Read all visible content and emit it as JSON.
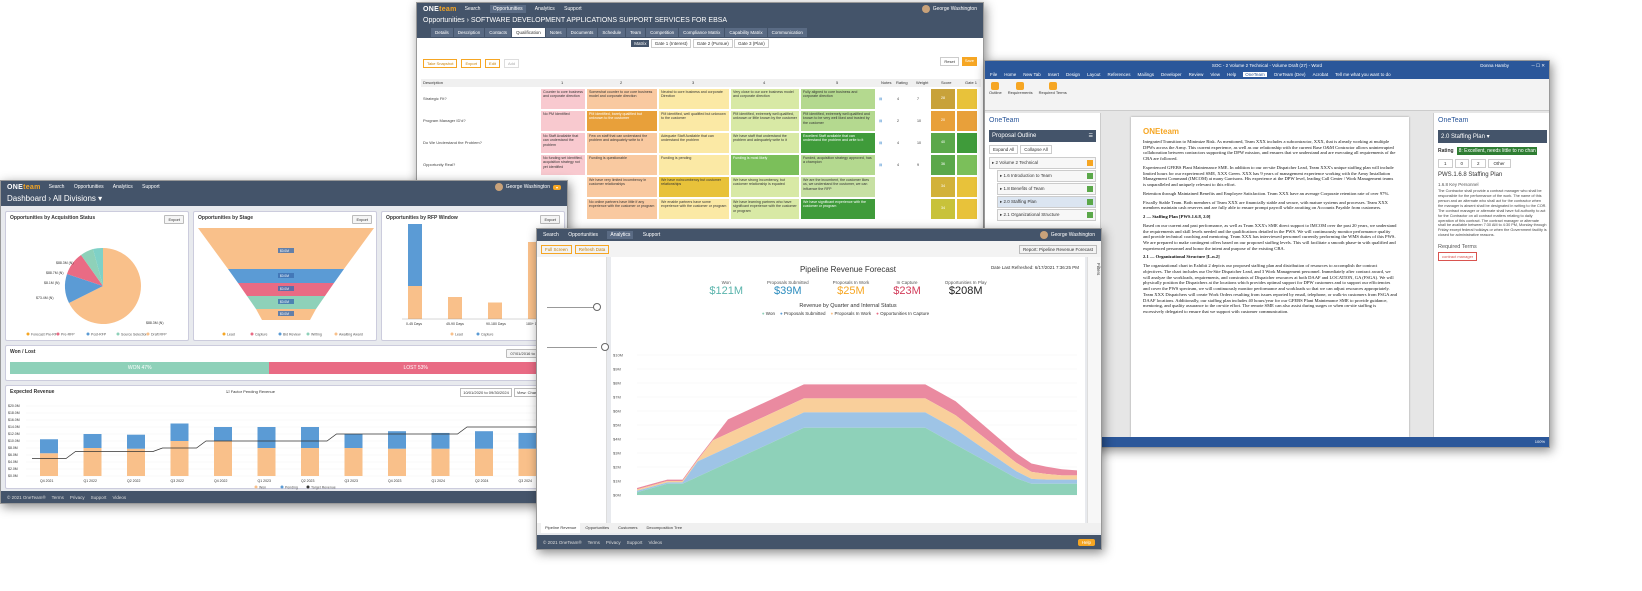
{
  "app": {
    "logo_main": "ONE",
    "logo_accent": "team",
    "user": "George Washington",
    "footer_copy": "© 2021 OneTeam®",
    "footer_links": [
      "Terms",
      "Privacy",
      "Support",
      "Videos"
    ],
    "help": "Help"
  },
  "nav": {
    "items": [
      "Search",
      "Opportunities",
      "Analytics",
      "Support"
    ]
  },
  "dashboard": {
    "title": "Dashboard",
    "divisions": "All Divisions",
    "acq": {
      "title": "Opportunities by Acquisition Status",
      "export": "Export",
      "labels": [
        "$88.3M (N)",
        "$88.7M (N)",
        "$8.1M (N)",
        "$73.4M (N)",
        "$88.3M (N)"
      ],
      "legend": [
        "Forecast Pre-RFP",
        "Pre-RFP",
        "Post-RFP",
        "Source Selection",
        "Draft RFP"
      ]
    },
    "stage": {
      "title": "Opportunities by Stage",
      "export": "Export",
      "labels": [
        "$0.0M",
        "$0.0M",
        "$0.0M",
        "$0.0M",
        "$0.0M"
      ],
      "legend": [
        "Lead",
        "Capture",
        "Bid Review",
        "Writing",
        "Awaiting Award"
      ]
    },
    "rfp": {
      "title": "Opportunities by RFP Window",
      "export": "Export",
      "categories": [
        "0-45 Days",
        "45-90 Days",
        "90-180 Days",
        "180+ Days"
      ],
      "legend": [
        "Lead",
        "Capture"
      ]
    },
    "wonlost": {
      "title": "Won / Lost",
      "range": "07/01/2016 to 07/30/2020",
      "won": "WON 47%",
      "lost": "LOST 53%"
    },
    "revenue": {
      "title": "Expected Revenue",
      "factor": "Factor Pending Revenue",
      "range": "10/01/2020 to 09/30/2024",
      "view": "View: Chart",
      "export": "Export",
      "yticks": [
        "$20.0M",
        "$18.0M",
        "$16.0M",
        "$14.0M",
        "$12.0M",
        "$10.0M",
        "$8.0M",
        "$6.0M",
        "$4.0M",
        "$2.0M",
        "$0.0M"
      ],
      "quarters": [
        "Q4 2021",
        "Q1 2022",
        "Q2 2022",
        "Q3 2022",
        "Q4 2022",
        "Q1 2023",
        "Q2 2023",
        "Q3 2023",
        "Q4 2023",
        "Q1 2024",
        "Q2 2024",
        "Q3 2024"
      ],
      "legend": [
        "Won",
        "Pending",
        "Target Revenue"
      ]
    }
  },
  "matrix": {
    "breadcrumb": "Opportunities",
    "title": "SOFTWARE DEVELOPMENT APPLICATIONS SUPPORT SERVICES FOR EBSA",
    "tabs": [
      "Details",
      "Description",
      "Contacts",
      "Qualification",
      "Notes",
      "Documents",
      "Schedule",
      "Team",
      "Competition",
      "Compliance Matrix",
      "Capability Matrix",
      "Communication"
    ],
    "subtabs": [
      "Matrix",
      "Gate 1 (Interest)",
      "Gate 2 (Pursue)",
      "Gate 3 (Plan)"
    ],
    "toolbar": [
      "Take Snapshot",
      "Export",
      "Edit",
      "Add"
    ],
    "reset": "Reset",
    "save": "Save",
    "headers": [
      "Description",
      "1",
      "2",
      "3",
      "4",
      "5",
      "Notes",
      "Rating",
      "Weight",
      "Score",
      "Gate 1"
    ],
    "rows": [
      {
        "desc": "Strategic Fit?",
        "c": [
          "Counter to core business and corporate direction",
          "Somewhat counter to our core business model and corporate direction",
          "Neutral to core business and corporate Direction",
          "Very close to our core business model and corporate direction",
          "Fully aligned to core business and corporate direction"
        ],
        "rating": "4",
        "weight": "7",
        "score": "28"
      },
      {
        "desc": "Program Manager ID'd?",
        "c": [
          "No PM Identified",
          "PM identified, barely qualified but unknown to the customer",
          "PM identified, well qualified but unknown to the customer",
          "PM identified, extremely well qualified, unknown or little known by the customer",
          "PM identified, extremely well qualified and known to be very well liked and trusted by the customer"
        ],
        "rating": "2",
        "weight": "10",
        "score": "20"
      },
      {
        "desc": "Do We Understand the Problem?",
        "c": [
          "No Staff Available that can understand the problem",
          "Few on staff that can understand the problem and adequately write to it",
          "Adequate Staff Available that can understand the problem",
          "We have staff that understand the problem and adequately write to it",
          "Excellent Staff available that can understand the problem and write to it"
        ],
        "rating": "4",
        "weight": "10",
        "score": "40"
      },
      {
        "desc": "Opportunity Real?",
        "c": [
          "No funding set identified, acquisition strategy not yet identified",
          "Funding is questionable",
          "Funding is pending",
          "Funding is most likely",
          "Funded, acquisition strategy approved, has a champion"
        ],
        "rating": "4",
        "weight": "9",
        "score": "36"
      },
      {
        "desc": "",
        "c": [
          "",
          "We have very limited incumbency in customer relationships",
          "We have noincumbency but customer relationships",
          "We have strong incumbency, but customer relationship is equated",
          "We are the incumbent, the customer likes us, we understand the customer, we can influence the RFP"
        ],
        "rating": "",
        "weight": "",
        "score": "34"
      },
      {
        "desc": "",
        "c": [
          "",
          "No online partners have little if any experience with the customer or program",
          "We enable partners have some experience with the customer or program",
          "We have learning partners who have significant experience with the customer or program",
          "We have significant experience with the customer or program"
        ],
        "rating": "",
        "weight": "",
        "score": "34"
      }
    ]
  },
  "pipeline": {
    "title": "Pipeline Revenue Forecast",
    "refreshed": "Date Last Refreshed: 6/17/2021 7:36:25 PM",
    "buttons": [
      "Full Screen",
      "Refresh Data"
    ],
    "report": "Report: Pipeline Revenue Forecast",
    "filters": "Filters",
    "kpis": [
      {
        "label": "Won",
        "value": "$121M",
        "color": "#5ab4ac"
      },
      {
        "label": "Proposals Submitted",
        "value": "$39M",
        "color": "#2b8cbe"
      },
      {
        "label": "Proposals In Work",
        "value": "$25M",
        "color": "#f6a623"
      },
      {
        "label": "In Capture",
        "value": "$23M",
        "color": "#d23c5a"
      },
      {
        "label": "Opportunities In Play",
        "value": "$208M",
        "color": "#222"
      }
    ],
    "chart_title": "Revenue by Quarter and Internal Status",
    "legend": [
      "Won",
      "Proposals Submitted",
      "Proposals In Work",
      "Opportunities In Capture"
    ],
    "yticks": [
      "$10M",
      "$9M",
      "$8M",
      "$7M",
      "$6M",
      "$5M",
      "$4M",
      "$3M",
      "$2M",
      "$1M",
      "$0M"
    ],
    "bottom_tabs": [
      "Pipeline Revenue",
      "Opportunities",
      "Customers",
      "Decomposition Tree"
    ]
  },
  "word": {
    "title": "SOC - 2 Volume 2 Technical - Volume Draft (27) - Word",
    "ribbon": [
      "File",
      "Home",
      "New Tab",
      "Insert",
      "Design",
      "Layout",
      "References",
      "Mailings",
      "Developer",
      "Review",
      "View",
      "Help",
      "OneTeam",
      "OneTeam (Dev)",
      "Acrobat"
    ],
    "tell": "Tell me what you want to do",
    "user": "Donna Hamby",
    "share": "Share",
    "ribbon_btns": [
      "Outline",
      "Requirements",
      "Proposals",
      "Required Terms"
    ],
    "pane_title": "OneTeam",
    "outline_title": "Proposal Outline",
    "expand": "Expand All",
    "collapse": "Collapse All",
    "outline": [
      "2 Volume 2 Technical",
      "1.6 Introduction to Team",
      "1.8 Benefits of Team",
      "2.0 Staffing Plan",
      "2.1 Organizational Structure"
    ],
    "para": [
      "Integrated Transition to Minimize Risk. As mentioned, Team XXX includes a subcontractor, XXX, that is already working at multiple DPWs across the Army. This current experience, as well as our relationship with the current Base O&M Contractor allows uninterrupted collaboration between contractors supporting the DPW mission, and ensures that we understand and are executing all requirements of the CBA are followed.",
      "Experienced GFEBS Plant Maintenance SME. In addition to our on-site Dispatcher Lead, Team XXX's unique staffing plan will include limited hours for our experienced SME, XXX Green. XXX has 9 years of management experience working with the Army Installation Management Command (IMCOM) at many Garrisons. His experience at the DPW level, leading Call Center / Work Management teams is unparalleled and uniquely relevant to this effort.",
      "Retention through Maintained Benefits and Employee Satisfaction. Team XXX have an average Corporate retention rate of over 97%.",
      "Fiscally Stable Team. Both members of Team XXX are financially stable and secure, with mature systems and processes. Team XXX members maintain cash reserves and are fully able to ensure prompt payroll while awaiting on Accounts Payable from customers.",
      "2 — Staffing Plan [PWS.1.6.8, 2.0]",
      "Based on our current and past performance, as well as Team XXX's SME direct support to IMCOM over the past 20 years, we understand the requirements and skill levels needed and the qualifications detailed in the PWS. We will continuously monitor performance quality and provide technical coaching and mentoring. Team XXX has interviewed personnel currently performing the WMS duties of this PWS. We are prepared to make contingent offers based on our proposed staffing levels. This will facilitate a smooth phase-in with qualified and experienced personnel and honor the intent and purpose of the existing CBA.",
      "2.1 — Organizational Structure [L.n.2]",
      "The organizational chart in Exhibit 2 depicts our proposed staffing plan and distribution of resources to accomplish the contract objectives. The chart includes our On-Site Dispatcher Lead, and 3 Work Management personnel. Immediately after contract award, we will analyze the workloads, requirements, and constraints of Dispatcher resources at both DAAF and LOCATION, GA (FSGA). We will physically position the Dispatchers at the locations which provides optimal support for DPW customers and to support our efficiencies and cover the PWS spectrum, we will continuously monitor performance and workloads so that we can adjust resources appropriately. Team XXX Dispatchers will create Work Orders resulting from issues reported by email, telephone, or walk-in customers from FSGA and DAAF locations. Additionally, our staffing plan includes 40 hours/year for our GFEBS Plant Maintenance SME to provide guidance, mentoring, and quality assurance to the on-site effort. The remote SME can also assist during surges or when on-site staffing is excessively delegated to ensure that we support with customer communication."
    ],
    "right_title": "OneTeam",
    "right_section": "2.0 Staffing Plan",
    "rating_label": "Rating",
    "rating_value": "8: Excellent, needs little to no chan",
    "counts": [
      "1",
      "0",
      "2",
      "Other"
    ],
    "pws": "PWS.1.6.8 Staffing Plan",
    "pws_sub": "1.6.8 Key Personnel",
    "pws_text": "The Contractor shall provide a contract manager who shall be responsible for the performance of the work. The name of this person and an alternate who shall act for the contractor when the manager is absent shall be designated in writing to the COR. The contract manager or alternate shall have full authority to act for the Contractor on all contract matters relating to daily operation of this contract. The contract manager or alternate shall be available between 7:30 AM to 4:30 PM, Monday through Friday except federal holidays or when the Government facility is closed for administrative reasons.",
    "req_terms": "Required Terms",
    "req_tag": "contract manager",
    "status": "Ready",
    "zoom": "100%"
  }
}
